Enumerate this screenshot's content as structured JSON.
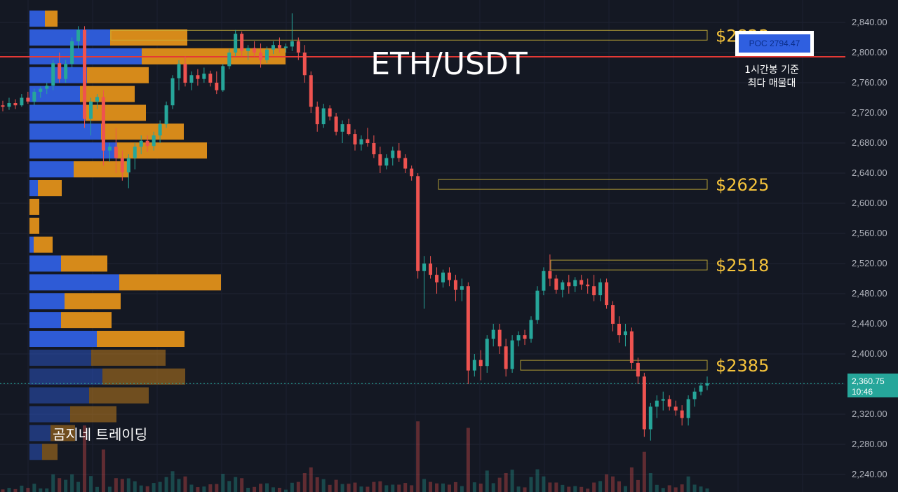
{
  "chart_data": {
    "type": "candlestick",
    "title": "ETH/USDT",
    "ylim": [
      2220,
      2860
    ],
    "y_ticks": [
      2840,
      2800,
      2760,
      2720,
      2680,
      2640,
      2600,
      2560,
      2520,
      2480,
      2440,
      2400,
      2360,
      2320,
      2280,
      2240
    ],
    "y_tick_labels": [
      "2,840.00",
      "2,800.00",
      "2,760.00",
      "2,720.00",
      "2,680.00",
      "2,640.00",
      "2,600.00",
      "2,560.00",
      "2,520.00",
      "2,480.00",
      "2,440.00",
      "2,400.00",
      "2,360.00",
      "2,320.00",
      "2,280.00",
      "2,240.00"
    ],
    "grid": true,
    "candles_ohlc": [
      [
        2730,
        2736,
        2722,
        2728
      ],
      [
        2728,
        2740,
        2724,
        2733
      ],
      [
        2733,
        2738,
        2725,
        2730
      ],
      [
        2730,
        2745,
        2728,
        2740
      ],
      [
        2740,
        2748,
        2732,
        2735
      ],
      [
        2735,
        2752,
        2730,
        2748
      ],
      [
        2748,
        2755,
        2740,
        2752
      ],
      [
        2752,
        2760,
        2745,
        2756
      ],
      [
        2756,
        2790,
        2750,
        2786
      ],
      [
        2786,
        2800,
        2760,
        2765
      ],
      [
        2765,
        2790,
        2760,
        2785
      ],
      [
        2785,
        2820,
        2780,
        2815
      ],
      [
        2815,
        2835,
        2805,
        2830
      ],
      [
        2830,
        2835,
        2700,
        2712
      ],
      [
        2712,
        2740,
        2690,
        2735
      ],
      [
        2735,
        2745,
        2725,
        2741
      ],
      [
        2741,
        2750,
        2650,
        2670
      ],
      [
        2670,
        2680,
        2655,
        2675
      ],
      [
        2675,
        2700,
        2640,
        2660
      ],
      [
        2660,
        2670,
        2630,
        2641
      ],
      [
        2641,
        2665,
        2620,
        2660
      ],
      [
        2660,
        2680,
        2645,
        2675
      ],
      [
        2675,
        2690,
        2665,
        2683
      ],
      [
        2683,
        2690,
        2668,
        2676
      ],
      [
        2676,
        2695,
        2670,
        2690
      ],
      [
        2690,
        2710,
        2680,
        2705
      ],
      [
        2705,
        2735,
        2700,
        2730
      ],
      [
        2730,
        2770,
        2725,
        2766
      ],
      [
        2766,
        2790,
        2750,
        2785
      ],
      [
        2785,
        2795,
        2755,
        2760
      ],
      [
        2760,
        2775,
        2750,
        2770
      ],
      [
        2770,
        2778,
        2756,
        2765
      ],
      [
        2765,
        2780,
        2760,
        2772
      ],
      [
        2772,
        2776,
        2755,
        2760
      ],
      [
        2760,
        2775,
        2745,
        2750
      ],
      [
        2750,
        2785,
        2748,
        2782
      ],
      [
        2782,
        2805,
        2778,
        2800
      ],
      [
        2800,
        2830,
        2795,
        2825
      ],
      [
        2825,
        2828,
        2795,
        2802
      ],
      [
        2802,
        2810,
        2790,
        2806
      ],
      [
        2806,
        2815,
        2795,
        2800
      ],
      [
        2800,
        2812,
        2780,
        2790
      ],
      [
        2790,
        2808,
        2786,
        2804
      ],
      [
        2804,
        2815,
        2798,
        2810
      ],
      [
        2810,
        2820,
        2800,
        2806
      ],
      [
        2806,
        2812,
        2800,
        2808
      ],
      [
        2808,
        2852,
        2802,
        2815
      ],
      [
        2815,
        2820,
        2790,
        2800
      ],
      [
        2800,
        2810,
        2760,
        2770
      ],
      [
        2770,
        2775,
        2720,
        2728
      ],
      [
        2728,
        2735,
        2695,
        2705
      ],
      [
        2705,
        2732,
        2700,
        2726
      ],
      [
        2726,
        2730,
        2710,
        2715
      ],
      [
        2715,
        2720,
        2690,
        2695
      ],
      [
        2695,
        2710,
        2680,
        2705
      ],
      [
        2705,
        2712,
        2690,
        2692
      ],
      [
        2692,
        2698,
        2670,
        2678
      ],
      [
        2678,
        2690,
        2670,
        2685
      ],
      [
        2685,
        2700,
        2675,
        2680
      ],
      [
        2680,
        2690,
        2660,
        2665
      ],
      [
        2665,
        2675,
        2640,
        2650
      ],
      [
        2650,
        2665,
        2645,
        2660
      ],
      [
        2660,
        2675,
        2650,
        2670
      ],
      [
        2670,
        2680,
        2655,
        2660
      ],
      [
        2660,
        2665,
        2640,
        2646
      ],
      [
        2646,
        2650,
        2630,
        2636
      ],
      [
        2636,
        2640,
        2500,
        2510
      ],
      [
        2510,
        2530,
        2460,
        2520
      ],
      [
        2520,
        2530,
        2500,
        2505
      ],
      [
        2505,
        2515,
        2480,
        2495
      ],
      [
        2495,
        2512,
        2488,
        2508
      ],
      [
        2508,
        2515,
        2490,
        2498
      ],
      [
        2498,
        2505,
        2470,
        2485
      ],
      [
        2485,
        2500,
        2470,
        2490
      ],
      [
        2490,
        2495,
        2360,
        2378
      ],
      [
        2378,
        2400,
        2370,
        2392
      ],
      [
        2392,
        2405,
        2365,
        2384
      ],
      [
        2384,
        2425,
        2375,
        2420
      ],
      [
        2420,
        2440,
        2410,
        2432
      ],
      [
        2432,
        2440,
        2400,
        2410
      ],
      [
        2410,
        2420,
        2370,
        2380
      ],
      [
        2380,
        2425,
        2375,
        2418
      ],
      [
        2418,
        2430,
        2410,
        2425
      ],
      [
        2425,
        2432,
        2412,
        2420
      ],
      [
        2420,
        2450,
        2415,
        2445
      ],
      [
        2445,
        2490,
        2440,
        2484
      ],
      [
        2484,
        2515,
        2478,
        2510
      ],
      [
        2510,
        2532,
        2490,
        2500
      ],
      [
        2500,
        2505,
        2480,
        2485
      ],
      [
        2485,
        2498,
        2475,
        2495
      ],
      [
        2495,
        2505,
        2480,
        2490
      ],
      [
        2490,
        2502,
        2482,
        2498
      ],
      [
        2498,
        2505,
        2485,
        2492
      ],
      [
        2492,
        2500,
        2480,
        2490
      ],
      [
        2490,
        2505,
        2470,
        2478
      ],
      [
        2478,
        2500,
        2470,
        2495
      ],
      [
        2495,
        2500,
        2460,
        2465
      ],
      [
        2465,
        2470,
        2430,
        2440
      ],
      [
        2440,
        2450,
        2415,
        2425
      ],
      [
        2425,
        2440,
        2410,
        2430
      ],
      [
        2430,
        2435,
        2380,
        2388
      ],
      [
        2388,
        2395,
        2360,
        2370
      ],
      [
        2370,
        2375,
        2290,
        2300
      ],
      [
        2300,
        2335,
        2285,
        2330
      ],
      [
        2330,
        2345,
        2315,
        2338
      ],
      [
        2338,
        2350,
        2325,
        2340
      ],
      [
        2340,
        2345,
        2325,
        2330
      ],
      [
        2330,
        2338,
        2318,
        2325
      ],
      [
        2325,
        2332,
        2305,
        2315
      ],
      [
        2315,
        2345,
        2305,
        2340
      ],
      [
        2340,
        2355,
        2330,
        2350
      ],
      [
        2350,
        2362,
        2345,
        2358
      ],
      [
        2358,
        2370,
        2352,
        2361
      ]
    ],
    "volume_profile": [
      {
        "price": 2845,
        "buy": 22,
        "sell": 18
      },
      {
        "price": 2820,
        "buy": 115,
        "sell": 110
      },
      {
        "price": 2795,
        "buy": 160,
        "sell": 205
      },
      {
        "price": 2770,
        "buy": 82,
        "sell": 88
      },
      {
        "price": 2745,
        "buy": 72,
        "sell": 78
      },
      {
        "price": 2720,
        "buy": 80,
        "sell": 86
      },
      {
        "price": 2695,
        "buy": 102,
        "sell": 118
      },
      {
        "price": 2670,
        "buy": 125,
        "sell": 128
      },
      {
        "price": 2645,
        "buy": 63,
        "sell": 78
      },
      {
        "price": 2620,
        "buy": 12,
        "sell": 34
      },
      {
        "price": 2595,
        "buy": 0,
        "sell": 14
      },
      {
        "price": 2570,
        "buy": 0,
        "sell": 14
      },
      {
        "price": 2545,
        "buy": 6,
        "sell": 27
      },
      {
        "price": 2520,
        "buy": 45,
        "sell": 66
      },
      {
        "price": 2495,
        "buy": 128,
        "sell": 145
      },
      {
        "price": 2470,
        "buy": 50,
        "sell": 80
      },
      {
        "price": 2445,
        "buy": 45,
        "sell": 72
      },
      {
        "price": 2420,
        "buy": 96,
        "sell": 125
      },
      {
        "price": 2395,
        "buy": 88,
        "sell": 106
      },
      {
        "price": 2370,
        "buy": 104,
        "sell": 118
      },
      {
        "price": 2345,
        "buy": 85,
        "sell": 85
      },
      {
        "price": 2320,
        "buy": 58,
        "sell": 66
      },
      {
        "price": 2295,
        "buy": 30,
        "sell": 35
      },
      {
        "price": 2270,
        "buy": 18,
        "sell": 22
      }
    ],
    "levels": [
      {
        "price": 2823,
        "label": "$2823"
      },
      {
        "price": 2625,
        "label": "$2625"
      },
      {
        "price": 2518,
        "label": "$2518"
      },
      {
        "price": 2385,
        "label": "$2385"
      }
    ],
    "poc": {
      "price": 2794.47,
      "label": "POC  2794.47",
      "note_line1": "1시간봉 기준",
      "note_line2": "최다 매물대"
    },
    "last_price": {
      "price": 2360.75,
      "label": "2,360.75",
      "countdown": "10:46"
    },
    "brand": "곰지네 트레이딩"
  },
  "colors": {
    "background": "#141823",
    "up": "#26a69a",
    "down": "#ef5350",
    "profile_buy": "#2f5fe0",
    "profile_sell": "#e0901a",
    "level_line": "#c9b23a",
    "level_text": "#f5c33b",
    "poc_line": "#e53935",
    "last_price_tag": "#26a69a"
  }
}
